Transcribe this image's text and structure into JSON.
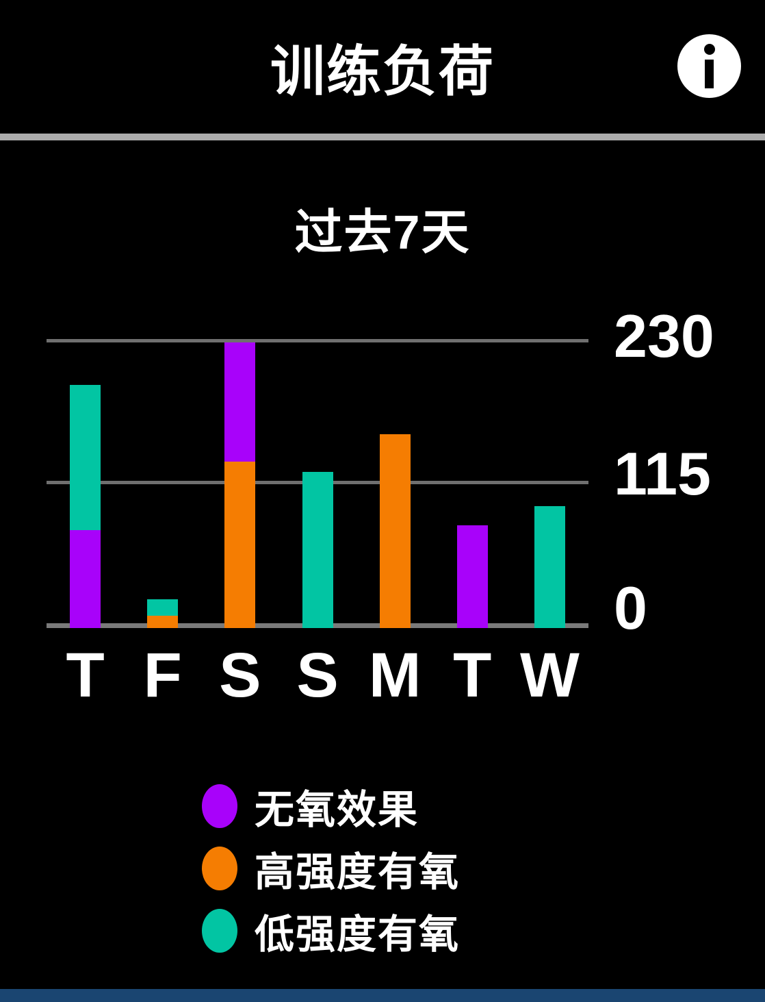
{
  "header": {
    "title": "训练负荷"
  },
  "subtitle": "过去7天",
  "chart_data": {
    "type": "bar",
    "stacked": true,
    "title": "过去7天",
    "categories": [
      "T",
      "F",
      "S",
      "S",
      "M",
      "T",
      "W"
    ],
    "series_order": "bottom_to_top",
    "series": [
      {
        "key": "high-aerobic",
        "name": "高强度有氧",
        "color": "#F57D02",
        "values": [
          0,
          10,
          134,
          0,
          156,
          0,
          0
        ]
      },
      {
        "key": "anaerobic",
        "name": "无氧效果",
        "color": "#A802FA",
        "values": [
          79,
          0,
          96,
          0,
          0,
          83,
          0
        ]
      },
      {
        "key": "low-aerobic",
        "name": "低强度有氧",
        "color": "#02C5A3",
        "values": [
          117,
          13,
          0,
          126,
          0,
          0,
          98
        ]
      }
    ],
    "totals_per_day": [
      196,
      23,
      230,
      126,
      156,
      83,
      98
    ],
    "ylim": [
      0,
      240
    ],
    "yticks": [
      {
        "value": 230,
        "label": "230"
      },
      {
        "value": 115,
        "label": "115"
      },
      {
        "value": 0,
        "label": "0"
      }
    ],
    "grid": "horizontal",
    "legend_position": "bottom"
  },
  "legend": {
    "items": [
      {
        "key": "anaerobic",
        "label": "无氧效果",
        "color": "#A802FA"
      },
      {
        "key": "high-aerobic",
        "label": "高强度有氧",
        "color": "#F57D02"
      },
      {
        "key": "low-aerobic",
        "label": "低强度有氧",
        "color": "#02C5A3"
      }
    ]
  },
  "colors": {
    "background": "#000000",
    "text": "#FFFFFF",
    "gridline": "#6F6F6F",
    "axis_line": "#7A7A7A",
    "divider": "#ACACAC",
    "bottom_bar": "#1A4571"
  }
}
